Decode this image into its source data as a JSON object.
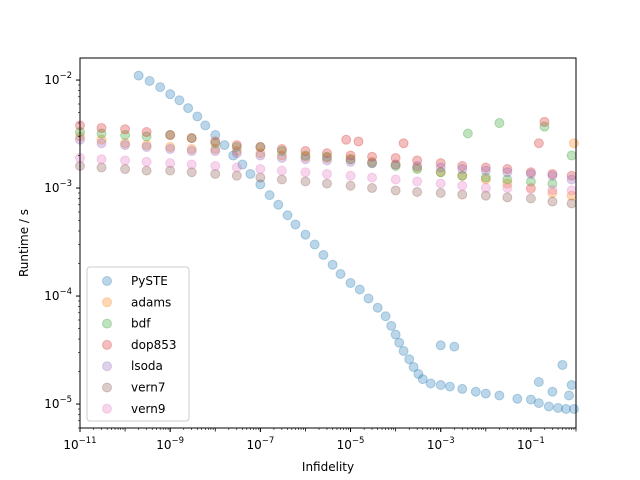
{
  "chart_data": {
    "type": "scatter",
    "xlabel": "Infidelity",
    "ylabel": "Runtime / s",
    "xscale": "log",
    "yscale": "log",
    "xlim": [
      1e-11,
      1.0
    ],
    "ylim": [
      6e-06,
      0.016
    ],
    "grid": false,
    "legend_position": "lower-left",
    "x_ticks": [
      {
        "value": 1e-11,
        "base": "10",
        "exp": "−11"
      },
      {
        "value": 1e-09,
        "base": "10",
        "exp": "−9"
      },
      {
        "value": 1e-07,
        "base": "10",
        "exp": "−7"
      },
      {
        "value": 1e-05,
        "base": "10",
        "exp": "−5"
      },
      {
        "value": 0.001,
        "base": "10",
        "exp": "−3"
      },
      {
        "value": 0.1,
        "base": "10",
        "exp": "−1"
      }
    ],
    "y_ticks": [
      {
        "value": 1e-05,
        "base": "10",
        "exp": "−5"
      },
      {
        "value": 0.0001,
        "base": "10",
        "exp": "−4"
      },
      {
        "value": 0.001,
        "base": "10",
        "exp": "−3"
      },
      {
        "value": 0.01,
        "base": "10",
        "exp": "−2"
      }
    ],
    "series": [
      {
        "name": "PySTE",
        "color": "#1f77b4",
        "points": [
          [
            2e-10,
            0.011
          ],
          [
            3.5e-10,
            0.0098
          ],
          [
            6e-10,
            0.0086
          ],
          [
            1e-09,
            0.0074
          ],
          [
            1.6e-09,
            0.0065
          ],
          [
            2.5e-09,
            0.0055
          ],
          [
            4e-09,
            0.0046
          ],
          [
            6e-09,
            0.0038
          ],
          [
            1e-08,
            0.0031
          ],
          [
            1.6e-08,
            0.0025
          ],
          [
            2.5e-08,
            0.002
          ],
          [
            4e-08,
            0.00165
          ],
          [
            6e-08,
            0.00135
          ],
          [
            1e-07,
            0.00108
          ],
          [
            1.6e-07,
            0.00086
          ],
          [
            2.5e-07,
            0.0007
          ],
          [
            4e-07,
            0.00056
          ],
          [
            6e-07,
            0.00046
          ],
          [
            1e-06,
            0.00037
          ],
          [
            1.6e-06,
            0.0003
          ],
          [
            2.5e-06,
            0.00024
          ],
          [
            4e-06,
            0.000195
          ],
          [
            6e-06,
            0.00016
          ],
          [
            1e-05,
            0.000132
          ],
          [
            1.6e-05,
            0.000115
          ],
          [
            2.5e-05,
            9.5e-05
          ],
          [
            4e-05,
            7.8e-05
          ],
          [
            6e-05,
            6.5e-05
          ],
          [
            8e-05,
            5.3e-05
          ],
          [
            0.0001,
            4.4e-05
          ],
          [
            0.00012,
            3.7e-05
          ],
          [
            0.00015,
            3.1e-05
          ],
          [
            0.0002,
            2.6e-05
          ],
          [
            0.00025,
            2.2e-05
          ],
          [
            0.00032,
            1.9e-05
          ],
          [
            0.0004,
            1.7e-05
          ],
          [
            0.0006,
            1.55e-05
          ],
          [
            0.001,
            1.5e-05
          ],
          [
            0.0016,
            1.45e-05
          ],
          [
            0.003,
            1.38e-05
          ],
          [
            0.006,
            1.3e-05
          ],
          [
            0.01,
            1.25e-05
          ],
          [
            0.02,
            1.2e-05
          ],
          [
            0.05,
            1.12e-05
          ],
          [
            0.1,
            1.1e-05
          ],
          [
            0.15,
            1.02e-05
          ],
          [
            0.25,
            9.5e-06
          ],
          [
            0.4,
            9.2e-06
          ],
          [
            0.6,
            9e-06
          ],
          [
            0.9,
            9e-06
          ],
          [
            0.15,
            1.6e-05
          ],
          [
            0.5,
            2.3e-05
          ],
          [
            0.8,
            1.5e-05
          ],
          [
            0.001,
            3.5e-05
          ],
          [
            0.002,
            3.4e-05
          ],
          [
            0.3,
            1.3e-05
          ],
          [
            0.7,
            1.2e-05
          ]
        ]
      },
      {
        "name": "adams",
        "color": "#ff7f0e",
        "points": [
          [
            1e-11,
            0.003
          ],
          [
            3e-11,
            0.0028
          ],
          [
            1e-10,
            0.0026
          ],
          [
            3e-10,
            0.0025
          ],
          [
            1e-09,
            0.0024
          ],
          [
            3e-09,
            0.0023
          ],
          [
            1e-08,
            0.0023
          ],
          [
            3e-08,
            0.0022
          ],
          [
            1e-07,
            0.0021
          ],
          [
            3e-07,
            0.002
          ],
          [
            1e-06,
            0.00195
          ],
          [
            3e-06,
            0.0019
          ],
          [
            1e-05,
            0.00185
          ],
          [
            3e-05,
            0.00175
          ],
          [
            0.0001,
            0.00165
          ],
          [
            0.0003,
            0.00155
          ],
          [
            0.001,
            0.0014
          ],
          [
            0.003,
            0.0013
          ],
          [
            0.01,
            0.0012
          ],
          [
            0.03,
            0.0011
          ],
          [
            0.1,
            0.001
          ],
          [
            0.3,
            0.0009
          ],
          [
            0.8,
            0.00085
          ],
          [
            0.9,
            0.0026
          ]
        ]
      },
      {
        "name": "bdf",
        "color": "#2ca02c",
        "points": [
          [
            1e-11,
            0.0033
          ],
          [
            3e-11,
            0.0032
          ],
          [
            1e-10,
            0.0031
          ],
          [
            3e-10,
            0.003
          ],
          [
            1e-09,
            0.0031
          ],
          [
            3e-09,
            0.0029
          ],
          [
            1e-08,
            0.0026
          ],
          [
            3e-08,
            0.0024
          ],
          [
            1e-07,
            0.0024
          ],
          [
            3e-07,
            0.0022
          ],
          [
            1e-06,
            0.002
          ],
          [
            3e-06,
            0.00195
          ],
          [
            1e-05,
            0.00185
          ],
          [
            3e-05,
            0.0017
          ],
          [
            0.0001,
            0.0016
          ],
          [
            0.0003,
            0.0015
          ],
          [
            0.001,
            0.0014
          ],
          [
            0.003,
            0.0013
          ],
          [
            0.01,
            0.00125
          ],
          [
            0.03,
            0.0012
          ],
          [
            0.1,
            0.00115
          ],
          [
            0.3,
            0.0011
          ],
          [
            0.8,
            0.002
          ],
          [
            0.004,
            0.0032
          ],
          [
            0.02,
            0.004
          ],
          [
            0.2,
            0.0037
          ]
        ]
      },
      {
        "name": "dop853",
        "color": "#d62728",
        "points": [
          [
            1e-11,
            0.0038
          ],
          [
            3e-11,
            0.0036
          ],
          [
            1e-10,
            0.0035
          ],
          [
            3e-10,
            0.0033
          ],
          [
            1e-09,
            0.0031
          ],
          [
            3e-09,
            0.0029
          ],
          [
            1e-08,
            0.0027
          ],
          [
            3e-08,
            0.0025
          ],
          [
            1e-07,
            0.0024
          ],
          [
            3e-07,
            0.0023
          ],
          [
            1e-06,
            0.0022
          ],
          [
            3e-06,
            0.0021
          ],
          [
            1e-05,
            0.002
          ],
          [
            3e-05,
            0.00195
          ],
          [
            0.0001,
            0.0019
          ],
          [
            0.0003,
            0.0018
          ],
          [
            0.001,
            0.0017
          ],
          [
            0.003,
            0.0016
          ],
          [
            0.01,
            0.00155
          ],
          [
            0.03,
            0.0015
          ],
          [
            0.1,
            0.0014
          ],
          [
            0.3,
            0.00135
          ],
          [
            0.8,
            0.0013
          ],
          [
            8e-06,
            0.0028
          ],
          [
            1.5e-05,
            0.0027
          ],
          [
            0.00015,
            0.0026
          ],
          [
            0.15,
            0.0026
          ],
          [
            0.2,
            0.0041
          ]
        ]
      },
      {
        "name": "lsoda",
        "color": "#9467bd",
        "points": [
          [
            1e-11,
            0.0028
          ],
          [
            3e-11,
            0.0026
          ],
          [
            1e-10,
            0.0025
          ],
          [
            3e-10,
            0.0024
          ],
          [
            1e-09,
            0.0023
          ],
          [
            3e-09,
            0.0022
          ],
          [
            1e-08,
            0.0022
          ],
          [
            3e-08,
            0.0021
          ],
          [
            1e-07,
            0.002
          ],
          [
            3e-07,
            0.0019
          ],
          [
            1e-06,
            0.00185
          ],
          [
            3e-06,
            0.0018
          ],
          [
            1e-05,
            0.00175
          ],
          [
            3e-05,
            0.0017
          ],
          [
            0.0001,
            0.00165
          ],
          [
            0.0003,
            0.0016
          ],
          [
            0.001,
            0.00155
          ],
          [
            0.003,
            0.0015
          ],
          [
            0.01,
            0.00145
          ],
          [
            0.03,
            0.0014
          ],
          [
            0.1,
            0.00135
          ],
          [
            0.3,
            0.0013
          ],
          [
            0.8,
            0.0012
          ]
        ]
      },
      {
        "name": "vern7",
        "color": "#8c564b",
        "points": [
          [
            1e-11,
            0.0016
          ],
          [
            3e-11,
            0.00155
          ],
          [
            1e-10,
            0.0015
          ],
          [
            3e-10,
            0.00145
          ],
          [
            1e-09,
            0.00145
          ],
          [
            3e-09,
            0.0014
          ],
          [
            1e-08,
            0.00135
          ],
          [
            3e-08,
            0.0013
          ],
          [
            1e-07,
            0.00125
          ],
          [
            3e-07,
            0.0012
          ],
          [
            1e-06,
            0.00115
          ],
          [
            3e-06,
            0.0011
          ],
          [
            1e-05,
            0.00105
          ],
          [
            3e-05,
            0.001
          ],
          [
            0.0001,
            0.00095
          ],
          [
            0.0003,
            0.00092
          ],
          [
            0.001,
            0.0009
          ],
          [
            0.003,
            0.00087
          ],
          [
            0.01,
            0.00085
          ],
          [
            0.03,
            0.00082
          ],
          [
            0.1,
            0.0008
          ],
          [
            0.3,
            0.00075
          ],
          [
            0.8,
            0.00072
          ]
        ]
      },
      {
        "name": "vern9",
        "color": "#e377c2",
        "points": [
          [
            1e-11,
            0.0019
          ],
          [
            3e-11,
            0.00185
          ],
          [
            1e-10,
            0.0018
          ],
          [
            3e-10,
            0.00175
          ],
          [
            1e-09,
            0.0017
          ],
          [
            3e-09,
            0.00165
          ],
          [
            1e-08,
            0.0016
          ],
          [
            3e-08,
            0.00155
          ],
          [
            1e-07,
            0.0015
          ],
          [
            3e-07,
            0.00145
          ],
          [
            1e-06,
            0.0014
          ],
          [
            3e-06,
            0.00135
          ],
          [
            1e-05,
            0.0013
          ],
          [
            3e-05,
            0.00125
          ],
          [
            0.0001,
            0.0012
          ],
          [
            0.0003,
            0.00115
          ],
          [
            0.001,
            0.0011
          ],
          [
            0.003,
            0.00105
          ],
          [
            0.01,
            0.001
          ],
          [
            0.03,
            0.001
          ],
          [
            0.1,
            0.00098
          ],
          [
            0.3,
            0.00096
          ],
          [
            0.8,
            0.00095
          ]
        ]
      }
    ]
  }
}
